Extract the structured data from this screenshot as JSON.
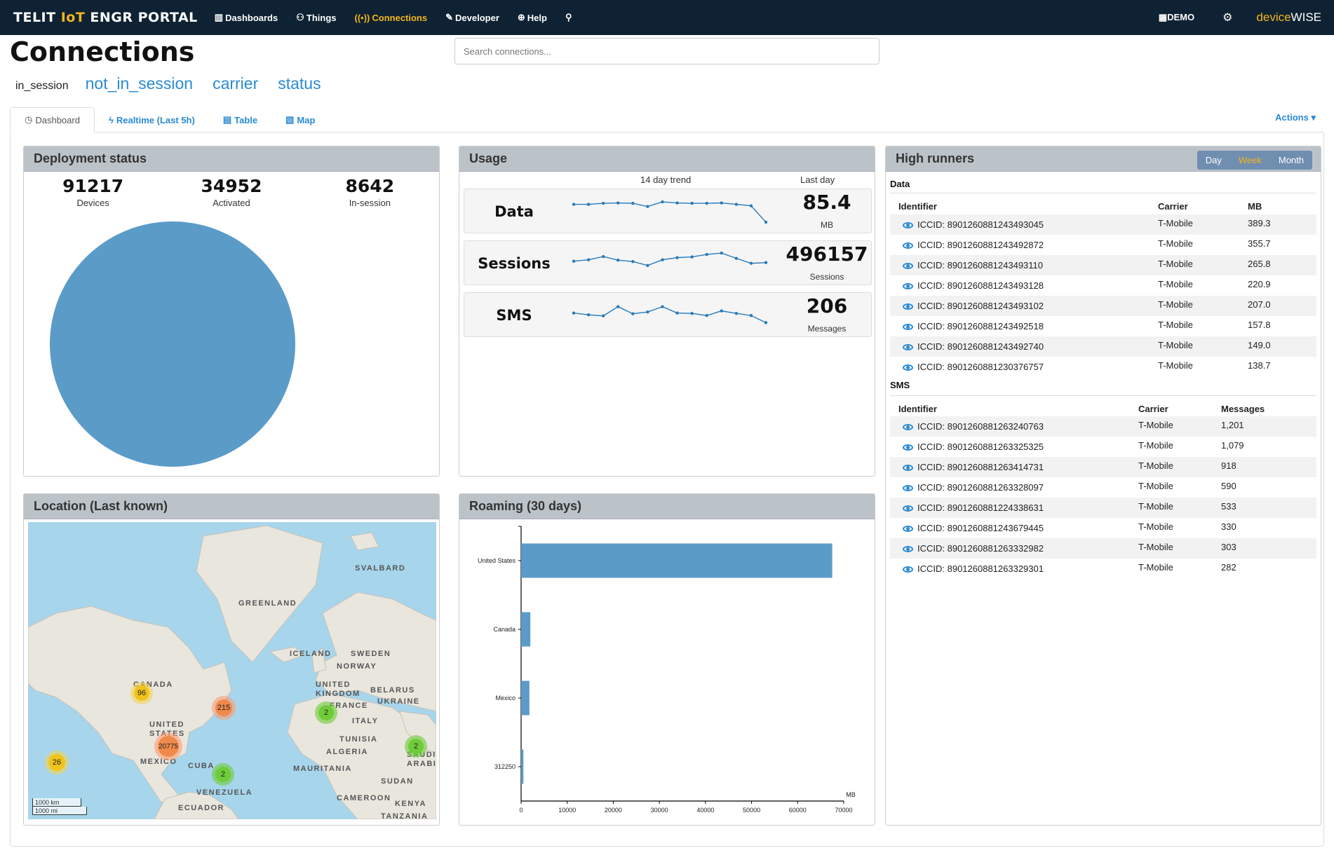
{
  "nav": {
    "brand_a": "TELIT ",
    "brand_iot": "IoT",
    "brand_b": " ENGR PORTAL",
    "items": [
      {
        "label": "Dashboards",
        "icon": "bar-chart-icon"
      },
      {
        "label": "Things",
        "icon": "things-icon"
      },
      {
        "label": "Connections",
        "icon": "antenna-icon"
      },
      {
        "label": "Developer",
        "icon": "wrench-icon"
      },
      {
        "label": "Help",
        "icon": "globe-icon"
      }
    ],
    "demo": "DEMO",
    "logo_a": "device",
    "logo_b": "WISE"
  },
  "header": {
    "title": "Connections",
    "search_placeholder": "Search connections...",
    "filters": [
      "in_session",
      "not_in_session",
      "carrier",
      "status"
    ]
  },
  "tabs": [
    "Dashboard",
    "Realtime (Last 5h)",
    "Table",
    "Map"
  ],
  "actions_label": "Actions",
  "deployment": {
    "title": "Deployment status",
    "stats": [
      {
        "value": "91217",
        "label": "Devices"
      },
      {
        "value": "34952",
        "label": "Activated"
      },
      {
        "value": "8642",
        "label": "In-session"
      }
    ],
    "color": "#5b9bc8"
  },
  "usage": {
    "title": "Usage",
    "trend_caption": "14 day trend",
    "last_caption": "Last day",
    "rows": [
      {
        "label": "Data",
        "value": "85.4",
        "unit": "MB",
        "trend": [
          6,
          6,
          6.3,
          6.4,
          6.3,
          5.4,
          6.7,
          6.4,
          6.3,
          6.3,
          6.4,
          6.0,
          5.6,
          1
        ]
      },
      {
        "label": "Sessions",
        "value": "496157",
        "unit": "Sessions",
        "trend": [
          4.6,
          5.0,
          5.9,
          4.9,
          4.5,
          3.4,
          5.0,
          5.6,
          5.8,
          6.5,
          6.9,
          5.4,
          4.0,
          4.2
        ]
      },
      {
        "label": "SMS",
        "value": "206",
        "unit": "Messages",
        "trend": [
          4.6,
          4.1,
          3.8,
          6.4,
          4.4,
          4.9,
          6.4,
          4.6,
          4.5,
          3.9,
          5.2,
          4.5,
          3.9,
          1.9
        ]
      }
    ]
  },
  "high_runners": {
    "title": "High runners",
    "periods": [
      "Day",
      "Week",
      "Month"
    ],
    "selected": "Week",
    "data_section": "Data",
    "data_cols": [
      "Identifier",
      "Carrier",
      "MB"
    ],
    "data_rows": [
      [
        "ICCID: 8901260881243493045",
        "T-Mobile",
        "389.3"
      ],
      [
        "ICCID: 8901260881243492872",
        "T-Mobile",
        "355.7"
      ],
      [
        "ICCID: 8901260881243493110",
        "T-Mobile",
        "265.8"
      ],
      [
        "ICCID: 8901260881243493128",
        "T-Mobile",
        "220.9"
      ],
      [
        "ICCID: 8901260881243493102",
        "T-Mobile",
        "207.0"
      ],
      [
        "ICCID: 8901260881243492518",
        "T-Mobile",
        "157.8"
      ],
      [
        "ICCID: 8901260881243492740",
        "T-Mobile",
        "149.0"
      ],
      [
        "ICCID: 8901260881230376757",
        "T-Mobile",
        "138.7"
      ]
    ],
    "sms_section": "SMS",
    "sms_cols": [
      "Identifier",
      "Carrier",
      "Messages"
    ],
    "sms_rows": [
      [
        "ICCID: 8901260881263240763",
        "T-Mobile",
        "1,201"
      ],
      [
        "ICCID: 8901260881263325325",
        "T-Mobile",
        "1,079"
      ],
      [
        "ICCID: 8901260881263414731",
        "T-Mobile",
        "918"
      ],
      [
        "ICCID: 8901260881263328097",
        "T-Mobile",
        "590"
      ],
      [
        "ICCID: 8901260881224338631",
        "T-Mobile",
        "533"
      ],
      [
        "ICCID: 8901260881243679445",
        "T-Mobile",
        "330"
      ],
      [
        "ICCID: 8901260881263332982",
        "T-Mobile",
        "303"
      ],
      [
        "ICCID: 8901260881263329301",
        "T-Mobile",
        "282"
      ]
    ]
  },
  "location": {
    "title": "Location (Last known)",
    "labels": [
      "SVALBARD",
      "GREENLAND",
      "ICELAND",
      "SWEDEN",
      "NORWAY",
      "CANADA",
      "UNITED KINGDOM",
      "BELARUS",
      "FRANCE",
      "UKRAINE",
      "ITALY",
      "UNITED STATES",
      "TUNISIA",
      "ALGERIA",
      "MEXICO",
      "CUBA",
      "MAURITANIA",
      "SAUDI ARABIA",
      "SUDAN",
      "VENEZUELA",
      "CAMEROON",
      "KENYA",
      "ECUADOR",
      "TANZANIA"
    ],
    "clusters": [
      "96",
      "215",
      "2",
      "20775",
      "2",
      "26",
      "2"
    ],
    "scale_km": "1000 km",
    "scale_mi": "1000 mi"
  },
  "chart_data": {
    "type": "bar",
    "orientation": "horizontal",
    "title": "Roaming (30 days)",
    "categories": [
      "United States",
      "Canada",
      "Mexico",
      "312250"
    ],
    "values": [
      67500,
      2000,
      1800,
      500
    ],
    "xlabel": "MB",
    "xlim": [
      0,
      70000
    ],
    "xticks": [
      "0",
      "10000",
      "20000",
      "30000",
      "40000",
      "50000",
      "60000",
      "70000"
    ],
    "color": "#5b9bc8",
    "grid": false
  }
}
